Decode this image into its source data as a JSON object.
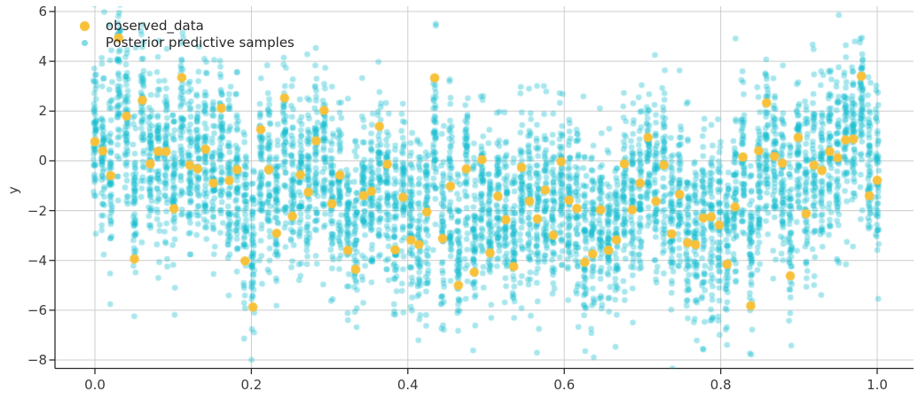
{
  "chart_data": {
    "type": "scatter",
    "title": "",
    "xlabel": "",
    "ylabel": "y",
    "xlim": [
      -0.051,
      1.047
    ],
    "ylim": [
      -8.35,
      6.21
    ],
    "grid": true,
    "legend_position": "upper left",
    "x_ticks": {
      "values": [
        0.0,
        0.2,
        0.4,
        0.6,
        0.8,
        1.0
      ],
      "labels": [
        "0.0",
        "0.2",
        "0.4",
        "0.6",
        "0.8",
        "1.0"
      ]
    },
    "y_ticks": {
      "values": [
        6,
        4,
        2,
        0,
        -2,
        -4,
        -6,
        -8
      ],
      "labels": [
        "6",
        "4",
        "2",
        "0",
        "−2",
        "−4",
        "−6",
        "−8"
      ]
    },
    "series": [
      {
        "name": "observed_data",
        "type": "scatter",
        "color": "#F8C13A",
        "marker_diameter_px": 10.5,
        "x_start": 0,
        "x_end": 1,
        "n_points": 100,
        "y": [
          0.77,
          0.4,
          -0.59,
          4.94,
          1.8,
          -3.94,
          2.44,
          -0.12,
          0.38,
          0.37,
          -1.92,
          3.35,
          -0.17,
          -0.32,
          0.47,
          -0.89,
          2.12,
          -0.79,
          -0.35,
          -4.02,
          -5.87,
          1.26,
          -0.35,
          -2.91,
          2.53,
          -2.22,
          -0.56,
          -1.26,
          0.81,
          2.03,
          -1.72,
          -0.57,
          -3.59,
          -4.36,
          -1.39,
          -1.22,
          1.39,
          -0.14,
          -3.57,
          -1.46,
          -3.18,
          -3.36,
          -2.05,
          3.34,
          -3.12,
          -1.02,
          -5.0,
          -0.32,
          -4.47,
          0.05,
          -3.7,
          -1.42,
          -2.36,
          -4.24,
          -0.26,
          -1.62,
          -2.33,
          -1.17,
          -2.99,
          -0.03,
          -1.58,
          -1.91,
          -4.07,
          -3.74,
          -1.96,
          -3.59,
          -3.17,
          -0.12,
          -1.96,
          -0.89,
          0.94,
          -1.62,
          -0.16,
          -2.93,
          -1.35,
          -3.29,
          -3.36,
          -2.29,
          -2.25,
          -2.58,
          -4.15,
          -1.85,
          0.16,
          -5.82,
          0.41,
          2.33,
          0.18,
          -0.09,
          -4.62,
          0.94,
          -2.12,
          -0.17,
          -0.39,
          0.38,
          0.13,
          0.84,
          0.88,
          3.4,
          -1.4,
          -0.78
        ]
      },
      {
        "name": "Posterior predictive samples",
        "type": "scatter",
        "color": "#17becf",
        "alpha": 0.38,
        "marker_diameter_px": 6.6,
        "x_start": 0,
        "x_end": 1,
        "n_columns": 100,
        "samples_per_column": 55,
        "column_center_rule": "0.5*observed + 0.5*local_mean(observed, window=9)",
        "column_sd": 1.75,
        "seed": 20240613
      }
    ]
  },
  "colors": {
    "background": "#ffffff",
    "grid": "#cccccc",
    "spine": "#2b2b2b",
    "tick_label": "#3a3a3a",
    "legend_text": "#262626"
  }
}
